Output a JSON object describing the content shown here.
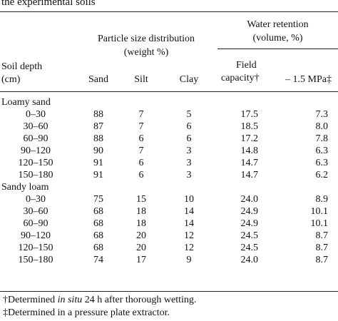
{
  "caption": "the experimental soils",
  "headers": {
    "psd_group": "Particle size distribution",
    "psd_unit": "(weight %)",
    "wr_group": "Water retention",
    "wr_unit": "(volume, %)",
    "soil_depth": "Soil depth",
    "cm": "(cm)",
    "sand": "Sand",
    "silt": "Silt",
    "clay": "Clay",
    "field": "Field",
    "capacity": "capacity†",
    "mpa": "– 1.5 MPa‡"
  },
  "sections": [
    {
      "name": "Loamy sand",
      "rows": [
        {
          "depth": "0–30",
          "sand": "88",
          "silt": "7",
          "clay": "5",
          "fc": "17.5",
          "mpa": "7.3"
        },
        {
          "depth": "30–60",
          "sand": "87",
          "silt": "7",
          "clay": "6",
          "fc": "18.5",
          "mpa": "8.0"
        },
        {
          "depth": "60–90",
          "sand": "88",
          "silt": "6",
          "clay": "6",
          "fc": "17.2",
          "mpa": "7.8"
        },
        {
          "depth": "90–120",
          "sand": "90",
          "silt": "7",
          "clay": "3",
          "fc": "14.8",
          "mpa": "6.3"
        },
        {
          "depth": "120–150",
          "sand": "91",
          "silt": "6",
          "clay": "3",
          "fc": "14.7",
          "mpa": "6.3"
        },
        {
          "depth": "150–180",
          "sand": "91",
          "silt": "6",
          "clay": "3",
          "fc": "14.7",
          "mpa": "6.2"
        }
      ]
    },
    {
      "name": "Sandy loam",
      "rows": [
        {
          "depth": "0–30",
          "sand": "75",
          "silt": "15",
          "clay": "10",
          "fc": "24.0",
          "mpa": "8.9"
        },
        {
          "depth": "30–60",
          "sand": "68",
          "silt": "18",
          "clay": "14",
          "fc": "24.9",
          "mpa": "10.1"
        },
        {
          "depth": "60–90",
          "sand": "68",
          "silt": "18",
          "clay": "14",
          "fc": "24.9",
          "mpa": "10.1"
        },
        {
          "depth": "90–120",
          "sand": "68",
          "silt": "20",
          "clay": "12",
          "fc": "24.5",
          "mpa": "8.7"
        },
        {
          "depth": "120–150",
          "sand": "68",
          "silt": "20",
          "clay": "12",
          "fc": "24.5",
          "mpa": "8.7"
        },
        {
          "depth": "150–180",
          "sand": "74",
          "silt": "17",
          "clay": "9",
          "fc": "24.0",
          "mpa": "8.7"
        }
      ]
    }
  ],
  "footnotes": {
    "f1_pre": "†Determined ",
    "f1_italic": "in situ",
    "f1_post": " 24 h after thorough wetting.",
    "f2": "‡Determined in a pressure plate extractor."
  }
}
